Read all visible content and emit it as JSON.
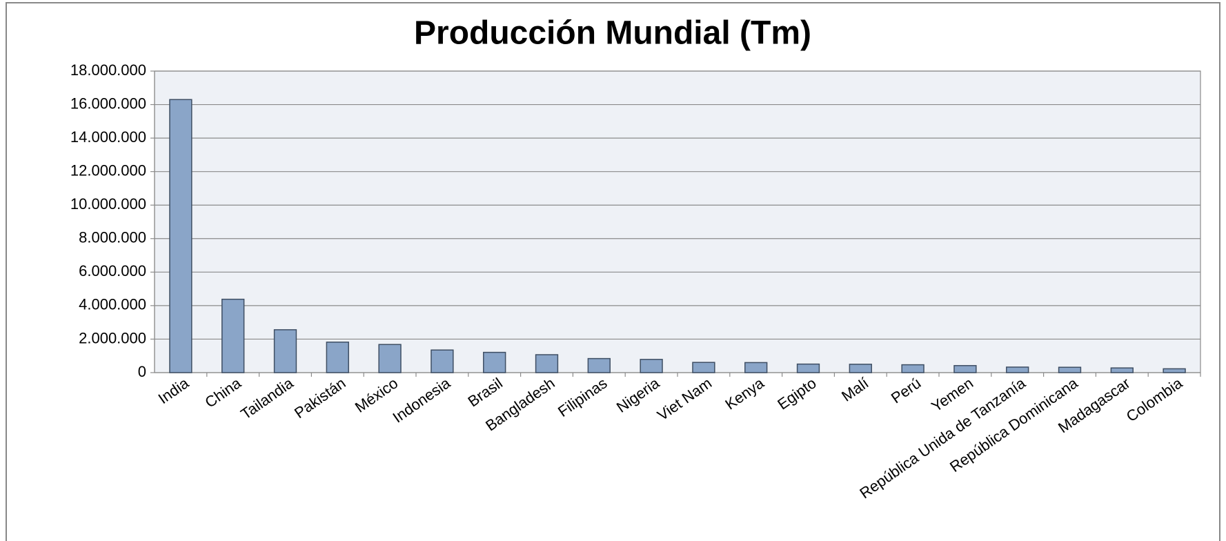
{
  "chart_data": {
    "type": "bar",
    "title": "Producción  Mundial (Tm)",
    "categories": [
      "India",
      "China",
      "Tailandia",
      "Pakistán",
      "México",
      "Indonesia",
      "Brasil",
      "Bangladesh",
      "Filipinas",
      "Nigeria",
      "Viet Nam",
      "Kenya",
      "Egipto",
      "Malí",
      "Perú",
      "Yemen",
      "República Unida de Tanzanía",
      "República Dominicana",
      "Madagascar",
      "Colombia"
    ],
    "values": [
      16300000,
      4380000,
      2560000,
      1820000,
      1680000,
      1350000,
      1210000,
      1070000,
      840000,
      790000,
      610000,
      600000,
      510000,
      500000,
      470000,
      420000,
      330000,
      320000,
      280000,
      230000
    ],
    "color": "#8aa5c8",
    "ylim": [
      0,
      18000000
    ],
    "yticks": [
      0,
      {
        "value": 2000000,
        "label": "2.000.000"
      },
      {
        "value": 4000000,
        "label": "4.000.000"
      },
      {
        "value": 6000000,
        "label": "6.000.000"
      },
      {
        "value": 8000000,
        "label": "8.000.000"
      },
      {
        "value": 10000000,
        "label": "10.000.000"
      },
      {
        "value": 12000000,
        "label": "12.000.000"
      },
      {
        "value": 14000000,
        "label": "14.000.000"
      },
      {
        "value": 16000000,
        "label": "16.000.000"
      },
      {
        "value": 18000000,
        "label": "18.000.000"
      }
    ],
    "grid": true
  }
}
